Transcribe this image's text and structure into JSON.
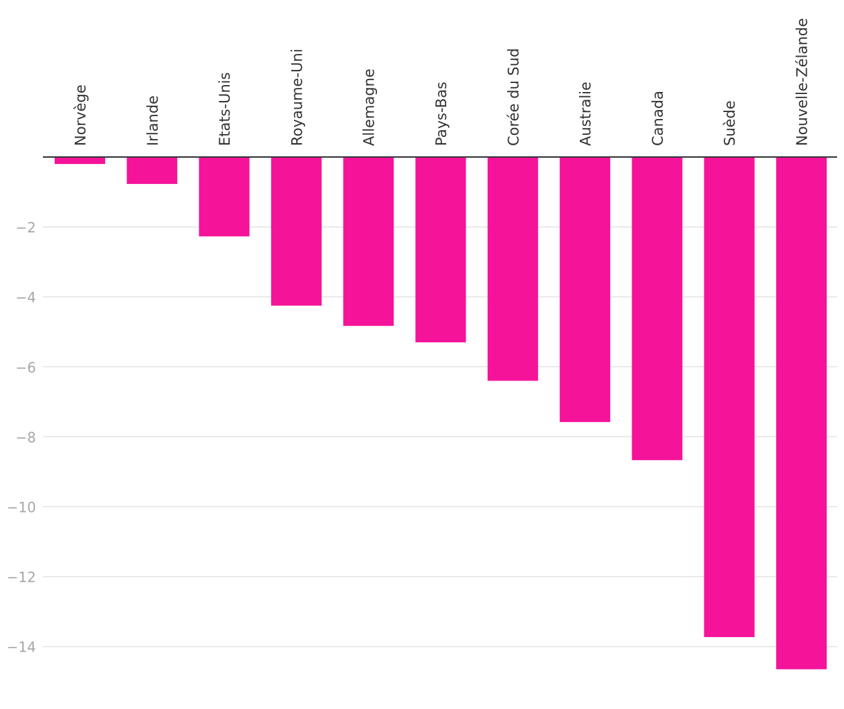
{
  "chart_data": {
    "type": "bar",
    "title": "",
    "xlabel": "",
    "ylabel": "",
    "categories": [
      "Norvège",
      "Irlande",
      "Etats-Unis",
      "Royaume-Uni",
      "Allemagne",
      "Pays-Bas",
      "Corée du Sud",
      "Australie",
      "Canada",
      "Suède",
      "Nouvelle-Zélande"
    ],
    "values": [
      -0.2,
      -0.77,
      -2.27,
      -4.25,
      -4.83,
      -5.3,
      -6.4,
      -7.58,
      -8.67,
      -13.73,
      -14.65
    ],
    "ylim": [
      -14.65,
      0
    ],
    "yticks": [
      -2,
      -4,
      -6,
      -8,
      -10,
      -12,
      -14
    ],
    "ytick_labels": [
      "−2",
      "−4",
      "−6",
      "−8",
      "−10",
      "−12",
      "−14"
    ],
    "grid": true,
    "legend": "none",
    "bar_color": "#f5139a",
    "grid_color": "#e3e3e3",
    "axis_color": "#333333",
    "tick_label_color": "#a6a6a6",
    "category_label_color": "#333333"
  }
}
